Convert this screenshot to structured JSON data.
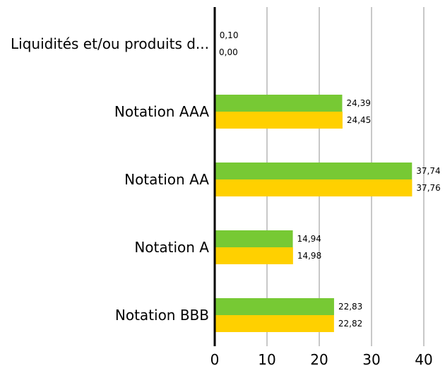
{
  "chart_data": {
    "type": "bar",
    "orientation": "horizontal",
    "categories": [
      "Liquidités et/ou produits d...",
      "Notation AAA",
      "Notation AA",
      "Notation A",
      "Notation BBB"
    ],
    "series": [
      {
        "color": "#77c934",
        "values": [
          0.1,
          24.39,
          37.74,
          14.94,
          22.83
        ],
        "labels": [
          "0,10",
          "24,39",
          "37,74",
          "14,94",
          "22,83"
        ]
      },
      {
        "color": "#ffd000",
        "values": [
          0.0,
          24.45,
          37.76,
          14.98,
          22.82
        ],
        "labels": [
          "0,00",
          "24,45",
          "37,76",
          "14,98",
          "22,82"
        ]
      }
    ],
    "xlim": [
      0,
      40
    ],
    "x_ticks": [
      "0",
      "10",
      "20",
      "30",
      "40"
    ],
    "grid": "vertical",
    "legend": "none",
    "title": "",
    "xlabel": "",
    "ylabel": ""
  }
}
